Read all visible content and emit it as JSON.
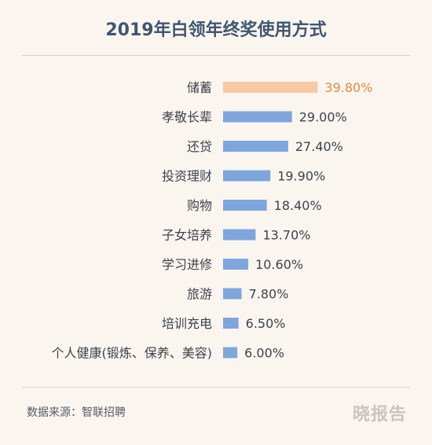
{
  "title": "2019年白领年终奖使用方式",
  "source": "数据来源：智联招聘",
  "brand": "晓报告",
  "colors": {
    "highlight": "#f7c9a4",
    "highlight_label": "#e58a3c",
    "bar": "#7ea6dd",
    "label": "#3d434c"
  },
  "chart_data": {
    "type": "bar",
    "orientation": "horizontal",
    "title": "2019年白领年终奖使用方式",
    "categories": [
      "储蓄",
      "孝敬长辈",
      "还贷",
      "投资理财",
      "购物",
      "子女培养",
      "学习进修",
      "旅游",
      "培训充电",
      "个人健康(锻炼、保养、美容)"
    ],
    "values": [
      39.8,
      29.0,
      27.4,
      19.9,
      18.4,
      13.7,
      10.6,
      7.8,
      6.5,
      6.0
    ],
    "value_labels": [
      "39.80%",
      "29.00%",
      "27.40%",
      "19.90%",
      "18.40%",
      "13.70%",
      "10.60%",
      "7.80%",
      "6.50%",
      "6.00%"
    ],
    "highlight_index": 0,
    "xlim": [
      0,
      40
    ],
    "grid": false,
    "xlabel": "",
    "ylabel": ""
  }
}
